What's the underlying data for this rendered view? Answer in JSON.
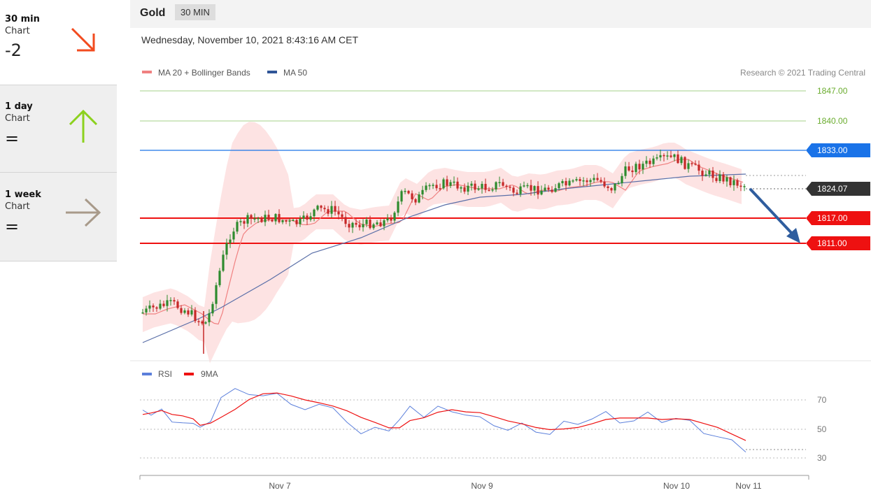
{
  "sidebar": {
    "items": [
      {
        "label": "30 min",
        "sub": "Chart",
        "score": "-2",
        "arrow_icon": "arrow-down-right-icon",
        "arrow_color": "#f24b1f"
      },
      {
        "label": "1 day",
        "sub": "Chart",
        "score": "=",
        "arrow_icon": "arrow-up-icon",
        "arrow_color": "#8cd11e"
      },
      {
        "label": "1 week",
        "sub": "Chart",
        "score": "=",
        "arrow_icon": "arrow-right-icon",
        "arrow_color": "#a89a8a"
      }
    ]
  },
  "header": {
    "asset": "Gold",
    "timeframe": "30 MIN"
  },
  "date": "Wednesday, November 10, 2021 8:43:16 AM CET",
  "legend": {
    "ma20": "MA 20 + Bollinger Bands",
    "ma50": "MA 50",
    "credit": "Research © 2021 Trading Central"
  },
  "rsi_legend": {
    "rsi": "RSI",
    "ma": "9MA"
  },
  "chart_data": {
    "type": "candlestick",
    "x_labels": [
      "Nov 7",
      "Nov 9",
      "Nov 10",
      "Nov 11"
    ],
    "price_range": [
      1770,
      1850
    ],
    "levels": [
      {
        "label": "1847.00",
        "value": 1847,
        "kind": "target",
        "color": "#6aac2e"
      },
      {
        "label": "1840.00",
        "value": 1840,
        "kind": "target",
        "color": "#6aac2e"
      },
      {
        "label": "1833.00",
        "value": 1833,
        "kind": "resistance",
        "color": "#1a73e8"
      },
      {
        "label": "1824.07",
        "value": 1824.07,
        "kind": "last",
        "color": "#333333"
      },
      {
        "label": "1817.00",
        "value": 1817,
        "kind": "support",
        "color": "#ee1111"
      },
      {
        "label": "1811.00",
        "value": 1811,
        "kind": "support",
        "color": "#ee1111"
      }
    ],
    "rsi_ticks": [
      "70",
      "50",
      "30"
    ],
    "rsi_last": 36,
    "colors": {
      "up": "#2e8b2e",
      "down": "#c62828",
      "ma20": "#f08080",
      "ma50": "#5a6fa8",
      "rsi": "#5b7fdb",
      "rsi_ma": "#ee1111",
      "projection": "#2f5d9e"
    }
  }
}
